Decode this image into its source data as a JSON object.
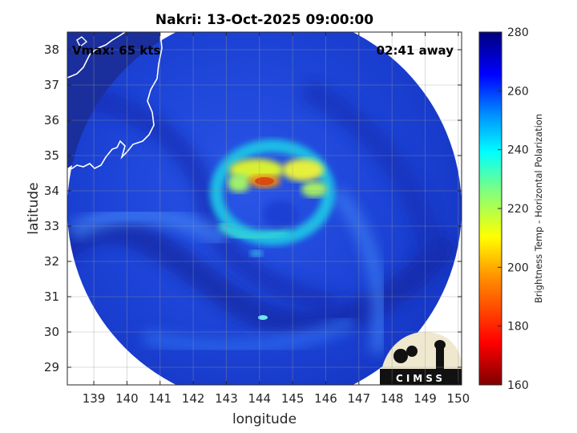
{
  "title": "Nakri: 13-Oct-2025 09:00:00",
  "annotations": {
    "vmax": "Vmax: 65 kts",
    "away": "02:41 away"
  },
  "logo": {
    "text": "CIMSS"
  },
  "chart_data": {
    "type": "heatmap",
    "xlabel": "longitude",
    "ylabel": "latitude",
    "xlim": [
      138.2,
      150.1
    ],
    "ylim": [
      28.5,
      38.5
    ],
    "xticks": [
      139,
      140,
      141,
      142,
      143,
      144,
      145,
      146,
      147,
      148,
      149,
      150
    ],
    "yticks": [
      29,
      30,
      31,
      32,
      33,
      34,
      35,
      36,
      37,
      38
    ],
    "grid": true,
    "colorbar": {
      "label": "Brightness Temp - Horizontal Polarization",
      "range": [
        160,
        280
      ],
      "ticks": [
        160,
        180,
        200,
        220,
        240,
        260,
        280
      ]
    },
    "colors": {
      "cold_core": "#d94a10",
      "band": "#f5e600",
      "background": "#1a3cc8"
    }
  }
}
